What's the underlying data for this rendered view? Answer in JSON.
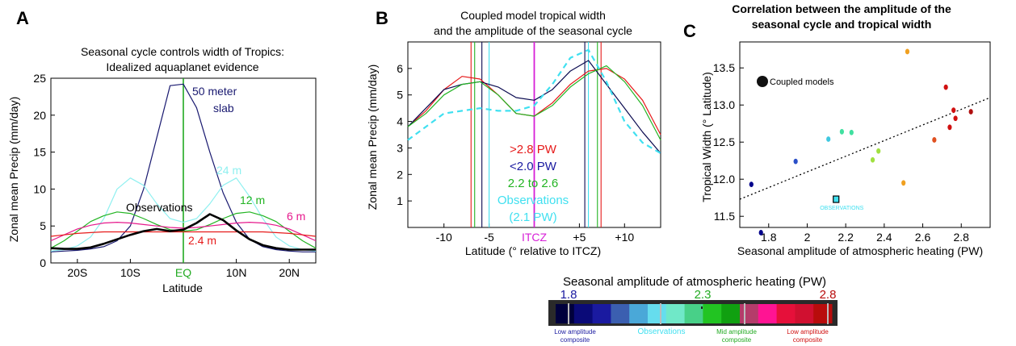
{
  "panels": {
    "a": {
      "letter": "A",
      "title_lines": [
        "Seasonal cycle controls width of Tropics:",
        "Idealized aquaplanet evidence"
      ],
      "ylabel": "Zonal mean Precip (mm/day)",
      "xlabel": "Latitude",
      "series_labels": [
        "50 meter",
        "slab",
        "24 m",
        "12 m",
        "6 m",
        "2.4 m",
        "Observations"
      ]
    },
    "b": {
      "letter": "B",
      "title_lines": [
        "Coupled model tropical width",
        "and the amplitude of the seasonal cycle"
      ],
      "ylabel": "Zonal mean Precip (mm/day)",
      "xlabel": "Latitude (° relative to ITCZ)",
      "legend_lines": [
        ">2.8 PW",
        "<2.0 PW",
        "2.2 to 2.6",
        "Observations",
        "(2.1 PW)"
      ]
    },
    "c": {
      "letter": "C",
      "title_lines": [
        "Correlation between the amplitude of the",
        "seasonal cycle and tropical width"
      ],
      "ylabel": "Tropical Width (° Latitude)",
      "xlabel": "Seasonal amplitude of atmospheric heating (PW)",
      "legend": "Coupled models",
      "obs_label": "OBSERVATIONS"
    }
  },
  "colorbar": {
    "title": "Seasonal amplitude of atmospheric heating (PW)",
    "tick_values": [
      "1.8",
      "2.3",
      "2.8"
    ],
    "captions": [
      [
        "Low amplitude",
        "composite"
      ],
      [
        "Observations"
      ],
      [
        "Mid amplitude",
        "composite"
      ],
      [
        "Low amplitude",
        "composite"
      ]
    ],
    "colors": [
      "#00003c",
      "#0a0a78",
      "#1a1aa0",
      "#3b5fb0",
      "#4aa8d8",
      "#66ddee",
      "#70e8c8",
      "#48d088",
      "#22c422",
      "#10a010",
      "#b43c6a",
      "#ff1493",
      "#e6103a",
      "#d01030",
      "#b80c0c"
    ]
  },
  "chart_data": [
    {
      "type": "line",
      "title": "Seasonal cycle controls width of Tropics: Idealized aquaplanet evidence",
      "xlabel": "Latitude",
      "ylabel": "Zonal mean Precip (mm/day)",
      "xlim": [
        -25,
        25
      ],
      "ylim": [
        0,
        25
      ],
      "xticks": [
        -20,
        -10,
        0,
        10,
        20
      ],
      "xtick_labels": [
        "20S",
        "10S",
        "EQ",
        "10N",
        "20N"
      ],
      "yticks": [
        0,
        5,
        10,
        15,
        20,
        25
      ],
      "grid": false,
      "x": [
        -25,
        -22.5,
        -20,
        -17.5,
        -15,
        -12.5,
        -10,
        -7.5,
        -5,
        -2.5,
        0,
        2.5,
        5,
        7.5,
        10,
        12.5,
        15,
        17.5,
        20,
        22.5,
        25
      ],
      "series": [
        {
          "name": "50 meter slab",
          "color": "#191970",
          "width": 1.2,
          "values": [
            1.5,
            1.6,
            1.7,
            1.9,
            2.2,
            3.0,
            5.0,
            10.0,
            17.0,
            24.0,
            24.2,
            21.0,
            15.0,
            9.5,
            5.5,
            3.2,
            2.2,
            1.8,
            1.6,
            1.5,
            1.5
          ]
        },
        {
          "name": "24 m",
          "color": "#8ff0f0",
          "width": 1.2,
          "values": [
            1.6,
            1.8,
            2.3,
            3.5,
            6.0,
            10.0,
            11.5,
            10.5,
            8.0,
            6.0,
            5.5,
            6.0,
            8.0,
            10.5,
            11.5,
            9.0,
            6.0,
            3.5,
            2.3,
            1.8,
            1.6
          ]
        },
        {
          "name": "12 m",
          "color": "#22b422",
          "width": 1.2,
          "values": [
            2.0,
            3.0,
            4.3,
            5.6,
            6.4,
            6.9,
            6.7,
            6.0,
            5.2,
            4.5,
            4.3,
            4.5,
            5.2,
            6.0,
            6.7,
            6.9,
            6.4,
            5.6,
            4.3,
            3.0,
            2.0
          ]
        },
        {
          "name": "6 m",
          "color": "#e6198c",
          "width": 1.2,
          "values": [
            3.0,
            3.8,
            4.6,
            5.1,
            5.4,
            5.5,
            5.4,
            5.2,
            5.0,
            4.8,
            4.7,
            4.8,
            5.0,
            5.2,
            5.4,
            5.5,
            5.4,
            5.1,
            4.6,
            3.8,
            3.0
          ]
        },
        {
          "name": "2.4 m",
          "color": "#e61a1a",
          "width": 1.2,
          "values": [
            3.6,
            3.8,
            4.0,
            4.1,
            4.2,
            4.2,
            4.2,
            4.2,
            4.2,
            4.2,
            4.2,
            4.2,
            4.2,
            4.2,
            4.2,
            4.2,
            4.2,
            4.1,
            4.0,
            3.8,
            3.6
          ]
        },
        {
          "name": "Observations",
          "color": "#000000",
          "width": 2.6,
          "values": [
            2.0,
            1.9,
            1.9,
            2.1,
            2.6,
            3.2,
            3.8,
            4.3,
            4.6,
            4.3,
            4.5,
            5.4,
            6.6,
            5.8,
            4.4,
            3.2,
            2.4,
            2.0,
            1.8,
            1.8,
            1.8
          ]
        }
      ],
      "annotations": [
        {
          "text": "EQ",
          "color": "#22aa22"
        },
        {
          "text": "vertical line at EQ",
          "x": 0,
          "color": "#22aa22"
        }
      ]
    },
    {
      "type": "line",
      "title": "Coupled model tropical width and the amplitude of the seasonal cycle",
      "xlabel": "Latitude (° relative to ITCZ)",
      "ylabel": "Zonal mean Precip (mm/day)",
      "xlim": [
        -14,
        14
      ],
      "ylim": [
        0,
        7
      ],
      "xticks": [
        -10,
        -5,
        0,
        5,
        10
      ],
      "xtick_labels": [
        "-10",
        "-5",
        "ITCZ",
        "+5",
        "+10"
      ],
      "yticks": [
        1,
        2,
        3,
        4,
        5,
        6
      ],
      "grid": false,
      "x": [
        -14,
        -12,
        -10,
        -8,
        -6,
        -4,
        -2,
        0,
        2,
        4,
        6,
        8,
        10,
        12,
        14
      ],
      "series": [
        {
          "name": ">2.8 PW",
          "color": "#e61a1a",
          "width": 1.2,
          "values": [
            3.8,
            4.4,
            5.2,
            5.7,
            5.6,
            5.0,
            4.3,
            4.2,
            4.7,
            5.4,
            5.9,
            6.0,
            5.6,
            4.8,
            3.5
          ]
        },
        {
          "name": "<2.0 PW",
          "color": "#0a0a50",
          "width": 1.2,
          "values": [
            3.8,
            4.5,
            5.2,
            5.4,
            5.5,
            5.3,
            4.9,
            4.8,
            5.2,
            5.9,
            6.3,
            5.4,
            4.5,
            3.6,
            2.8
          ]
        },
        {
          "name": "2.2 to 2.6",
          "color": "#22b422",
          "width": 1.2,
          "values": [
            3.8,
            4.3,
            5.0,
            5.4,
            5.5,
            5.0,
            4.3,
            4.2,
            4.6,
            5.3,
            5.8,
            6.1,
            5.5,
            4.6,
            3.3
          ]
        },
        {
          "name": "Observations (2.1 PW)",
          "color": "#40e0f0",
          "width": 2.2,
          "dashed": true,
          "values": [
            3.3,
            3.8,
            4.3,
            4.4,
            4.5,
            4.4,
            4.4,
            4.6,
            5.4,
            6.4,
            6.7,
            5.5,
            4.0,
            3.2,
            2.8
          ]
        }
      ],
      "vertical_lines": [
        {
          "x": -7.0,
          "color": "#e61a1a"
        },
        {
          "x": -6.6,
          "color": "#22b422"
        },
        {
          "x": -5.8,
          "color": "#0a0a50"
        },
        {
          "x": -5.0,
          "color": "#40e0f0"
        },
        {
          "x": 0,
          "color": "#d71fd7"
        },
        {
          "x": 5.6,
          "color": "#0a0a50"
        },
        {
          "x": 6.0,
          "color": "#40e0f0"
        },
        {
          "x": 7.0,
          "color": "#22b422"
        },
        {
          "x": 7.4,
          "color": "#e61a1a"
        }
      ]
    },
    {
      "type": "scatter",
      "title": "Correlation between the amplitude of the seasonal cycle and tropical width",
      "xlabel": "Seasonal amplitude of atmospheric heating (PW)",
      "ylabel": "Tropical Width (° Latitude)",
      "xlim": [
        1.65,
        2.95
      ],
      "ylim": [
        11.35,
        13.85
      ],
      "xticks": [
        1.8,
        2.0,
        2.2,
        2.4,
        2.6,
        2.8
      ],
      "yticks": [
        11.5,
        12.0,
        12.5,
        13.0,
        13.5
      ],
      "grid": false,
      "legend_placement": "top-left",
      "points": [
        {
          "x": 1.71,
          "y": 11.93,
          "color": "#00008b"
        },
        {
          "x": 1.76,
          "y": 11.28,
          "color": "#00008b"
        },
        {
          "x": 1.94,
          "y": 12.24,
          "color": "#2a4fc8"
        },
        {
          "x": 2.11,
          "y": 12.54,
          "color": "#40c8e0"
        },
        {
          "x": 2.18,
          "y": 12.64,
          "color": "#40e0a0"
        },
        {
          "x": 2.23,
          "y": 12.63,
          "color": "#40e0a0"
        },
        {
          "x": 2.34,
          "y": 12.26,
          "color": "#a0e040"
        },
        {
          "x": 2.37,
          "y": 12.38,
          "color": "#a0e040"
        },
        {
          "x": 2.5,
          "y": 11.95,
          "color": "#f0a020"
        },
        {
          "x": 2.52,
          "y": 13.72,
          "color": "#f0a020"
        },
        {
          "x": 2.66,
          "y": 12.53,
          "color": "#e05020"
        },
        {
          "x": 2.72,
          "y": 13.24,
          "color": "#d01010"
        },
        {
          "x": 2.74,
          "y": 12.7,
          "color": "#d01010"
        },
        {
          "x": 2.76,
          "y": 12.93,
          "color": "#d01010"
        },
        {
          "x": 2.77,
          "y": 12.82,
          "color": "#d01010"
        },
        {
          "x": 2.85,
          "y": 12.91,
          "color": "#b01010"
        }
      ],
      "observation": {
        "x": 2.15,
        "y": 11.73
      },
      "fit_line": {
        "x": [
          1.65,
          2.95
        ],
        "y": [
          11.73,
          13.1
        ]
      }
    }
  ]
}
